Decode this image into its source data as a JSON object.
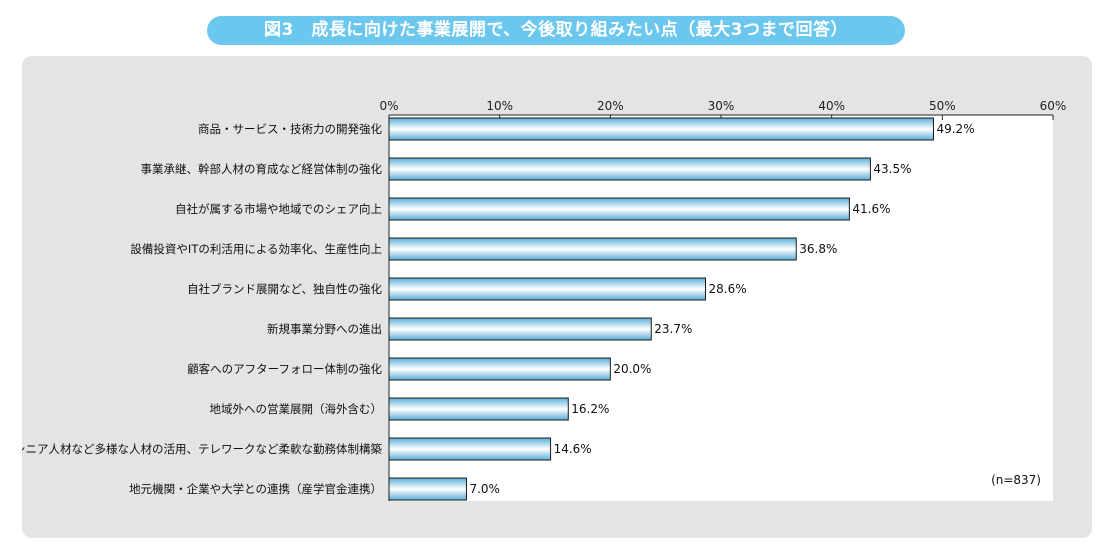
{
  "title": "図3　成長に向けた事業展開で、今後取り組みたい点（最大3つまで回答）",
  "note": "(n=837)",
  "colors": {
    "title_bg": "#6cc7ee",
    "panel_bg": "#e4e4e4",
    "bar_edge": "#5aaed8",
    "bar_center": "#ffffff",
    "bar_border": "#1a1a1a"
  },
  "chart_data": {
    "type": "bar",
    "orientation": "horizontal",
    "title": "図3　成長に向けた事業展開で、今後取り組みたい点（最大3つまで回答）",
    "xlim": [
      0,
      60
    ],
    "ticks": [
      0,
      10,
      20,
      30,
      40,
      50,
      60
    ],
    "tick_labels": [
      "0%",
      "10%",
      "20%",
      "30%",
      "40%",
      "50%",
      "60%"
    ],
    "categories": [
      "商品・サービス・技術力の開発強化",
      "事業承継、幹部人材の育成など経営体制の強化",
      "自社が属する市場や地域でのシェア向上",
      "設備投資やITの利活用による効率化、生産性向上",
      "自社ブランド展開など、独自性の強化",
      "新規事業分野への進出",
      "顧客へのアフターフォロー体制の強化",
      "地域外への営業展開（海外含む）",
      "女性・シニア人材など多様な人材の活用、テレワークなど柔軟な勤務体制構築",
      "地元機関・企業や大学との連携（産学官金連携）"
    ],
    "values": [
      49.2,
      43.5,
      41.6,
      36.8,
      28.6,
      23.7,
      20.0,
      16.2,
      14.6,
      7.0
    ],
    "value_labels": [
      "49.2%",
      "43.5%",
      "41.6%",
      "36.8%",
      "28.6%",
      "23.7%",
      "20.0%",
      "16.2%",
      "14.6%",
      "7.0%"
    ],
    "grid": false,
    "legend": "none"
  }
}
